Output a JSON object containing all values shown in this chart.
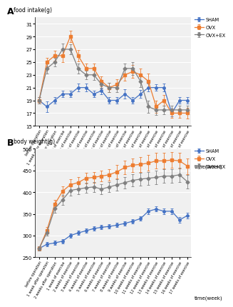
{
  "x_labels": [
    "before operation",
    "1 week after operation",
    "2 weeks after operation",
    "1 week of exercise",
    "2 weeks of exercise",
    "3 weeks of exercise",
    "4 weeks of exercise",
    "5 weeks of exercise",
    "6 weeks of exercise",
    "7 weeks of exercise",
    "8 weeks of exercise",
    "9 weeks of exercise",
    "10 weeks of exercise",
    "11 weeks of exercise",
    "12 weeks of exercise",
    "13 weeks of exercise",
    "14 weeks of exercise",
    "15 weeks of exercise",
    "16 weeks of exercise",
    "17 weeks of exercise"
  ],
  "food_intake": {
    "SHAM": [
      19.0,
      18.0,
      19.0,
      20.0,
      20.0,
      21.0,
      21.0,
      20.0,
      20.5,
      19.0,
      19.0,
      20.0,
      19.0,
      20.0,
      21.0,
      21.0,
      21.0,
      17.0,
      19.0,
      19.0
    ],
    "OVX": [
      19.0,
      25.0,
      26.0,
      26.0,
      29.0,
      26.0,
      24.0,
      24.0,
      22.0,
      21.0,
      21.5,
      23.0,
      23.5,
      23.0,
      22.0,
      18.0,
      19.0,
      17.0,
      17.0,
      17.0
    ],
    "OVX+EX": [
      19.0,
      24.0,
      25.0,
      27.0,
      27.0,
      24.0,
      23.0,
      23.0,
      21.5,
      21.0,
      21.0,
      24.0,
      24.0,
      22.0,
      18.0,
      17.5,
      17.5,
      17.5,
      17.5,
      17.5
    ]
  },
  "food_intake_err": {
    "SHAM": [
      0.5,
      0.8,
      0.5,
      0.5,
      0.5,
      0.6,
      0.6,
      0.5,
      0.5,
      0.5,
      0.5,
      0.7,
      0.5,
      0.6,
      0.6,
      0.5,
      0.6,
      0.5,
      0.5,
      0.5
    ],
    "OVX": [
      0.5,
      0.7,
      0.8,
      1.0,
      0.9,
      0.9,
      0.8,
      0.8,
      0.8,
      0.7,
      0.8,
      0.9,
      1.0,
      1.0,
      1.2,
      1.0,
      0.8,
      0.7,
      0.7,
      0.8
    ],
    "OVX+EX": [
      0.5,
      0.8,
      0.7,
      0.9,
      0.8,
      0.8,
      0.7,
      0.8,
      0.7,
      0.7,
      0.7,
      0.8,
      1.0,
      0.9,
      1.0,
      0.8,
      0.7,
      0.7,
      0.7,
      0.7
    ]
  },
  "body_weight": {
    "SHAM": [
      270,
      280,
      283,
      287,
      300,
      306,
      311,
      316,
      319,
      321,
      324,
      328,
      333,
      339,
      356,
      361,
      356,
      356,
      336,
      346
    ],
    "OVX": [
      270,
      312,
      372,
      402,
      417,
      422,
      432,
      434,
      437,
      440,
      447,
      457,
      462,
      464,
      467,
      472,
      472,
      474,
      472,
      460
    ],
    "OVX+EX": [
      270,
      307,
      362,
      382,
      404,
      407,
      410,
      412,
      407,
      412,
      417,
      422,
      427,
      430,
      432,
      434,
      437,
      437,
      440,
      424
    ]
  },
  "body_weight_err": {
    "SHAM": [
      5,
      5,
      5,
      5,
      5,
      5,
      5,
      5,
      5,
      5,
      5,
      5,
      5,
      5,
      6,
      6,
      6,
      6,
      6,
      6
    ],
    "OVX": [
      5,
      8,
      10,
      12,
      12,
      12,
      12,
      12,
      12,
      13,
      15,
      15,
      16,
      17,
      18,
      18,
      18,
      18,
      18,
      18
    ],
    "OVX+EX": [
      5,
      7,
      9,
      11,
      12,
      12,
      12,
      12,
      12,
      12,
      13,
      13,
      14,
      15,
      15,
      16,
      16,
      16,
      16,
      16
    ]
  },
  "colors": {
    "SHAM": "#4472C4",
    "OVX": "#ED7D31",
    "OVX+EX": "#808080"
  },
  "food_ylim": [
    15,
    32
  ],
  "food_yticks": [
    15,
    17,
    19,
    21,
    23,
    25,
    27,
    29,
    31
  ],
  "body_ylim": [
    250,
    500
  ],
  "body_yticks": [
    250,
    300,
    350,
    400,
    450,
    500
  ],
  "panel_A_label": "A",
  "panel_B_label": "B",
  "food_ylabel": "food intake(g)",
  "body_ylabel": "body weight(g)",
  "xlabel": "time(week)",
  "bg_color": "#f0f0f0"
}
